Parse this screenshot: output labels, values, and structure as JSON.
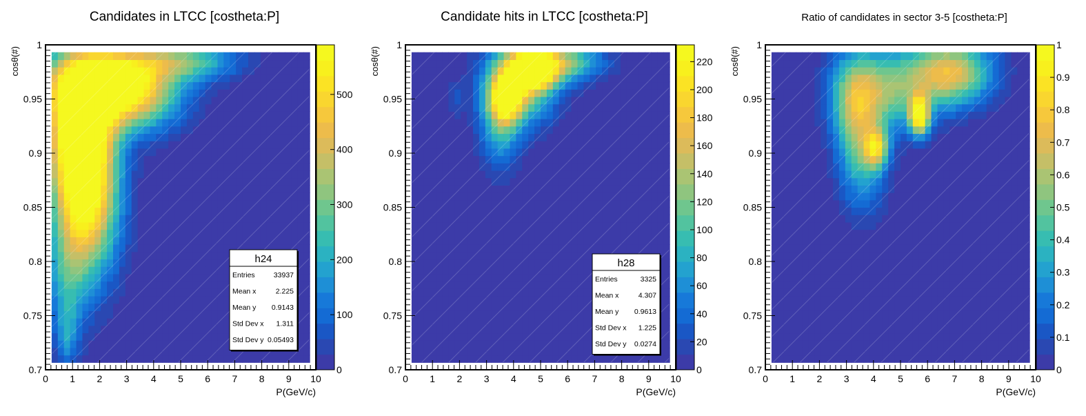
{
  "palette": {
    "colors": [
      "#3c3ba8",
      "#2a48b2",
      "#1a57c5",
      "#146bd4",
      "#1779d9",
      "#1e8fd6",
      "#23a2cf",
      "#2bb2c1",
      "#37bdb1",
      "#52c39f",
      "#6fc68e",
      "#8fc57f",
      "#aac473",
      "#c5bf67",
      "#dcbb5a",
      "#edbc4b",
      "#f6c83c",
      "#f9d62f",
      "#fbe324",
      "#f8f01d",
      "#f5f81f"
    ]
  },
  "chart_data": [
    {
      "type": "heatmap",
      "title": "Candidates in LTCC [costheta:P]",
      "xlabel": "P(GeV/c)",
      "ylabel": "cosθ(#)",
      "xlim": [
        0,
        10
      ],
      "ylim": [
        0.7,
        1.0
      ],
      "x_ticks": [
        "0",
        "1",
        "2",
        "3",
        "4",
        "5",
        "6",
        "7",
        "8",
        "9",
        "10"
      ],
      "y_ticks": [
        "0.7",
        "0.75",
        "0.8",
        "0.85",
        "0.9",
        "0.95",
        "1"
      ],
      "zlim": [
        0,
        590
      ],
      "z_ticks": [
        "0",
        "100",
        "200",
        "300",
        "400",
        "500"
      ],
      "blobs": [
        {
          "x": 1.5,
          "y": 0.86,
          "sx": 0.8,
          "sy": 0.05,
          "amp": 560
        },
        {
          "x": 1.2,
          "y": 0.92,
          "sx": 0.8,
          "sy": 0.04,
          "amp": 520
        },
        {
          "x": 1.8,
          "y": 0.965,
          "sx": 1.3,
          "sy": 0.025,
          "amp": 480
        },
        {
          "x": 3.3,
          "y": 0.96,
          "sx": 1.2,
          "sy": 0.025,
          "amp": 400
        },
        {
          "x": 5.2,
          "y": 0.985,
          "sx": 1.3,
          "sy": 0.012,
          "amp": 260
        },
        {
          "x": 0.8,
          "y": 0.78,
          "sx": 0.5,
          "sy": 0.04,
          "amp": 160
        },
        {
          "x": 0.8,
          "y": 0.73,
          "sx": 0.25,
          "sy": 0.02,
          "amp": 110
        }
      ],
      "stats": {
        "name": "h24",
        "rows": [
          {
            "label": "Entries",
            "value": "33937"
          },
          {
            "label": "Mean x",
            "value": "2.225"
          },
          {
            "label": "Mean y",
            "value": "0.9143"
          },
          {
            "label": "Std Dev x",
            "value": "1.311"
          },
          {
            "label": "Std Dev y",
            "value": "0.05493"
          }
        ]
      }
    },
    {
      "type": "heatmap",
      "title": "Candidate hits in LTCC [costheta:P]",
      "xlabel": "P(GeV/c)",
      "ylabel": "cosθ(#)",
      "xlim": [
        0,
        10
      ],
      "ylim": [
        0.7,
        1.0
      ],
      "x_ticks": [
        "0",
        "1",
        "2",
        "3",
        "4",
        "5",
        "6",
        "7",
        "8",
        "9",
        "10"
      ],
      "y_ticks": [
        "0.7",
        "0.75",
        "0.8",
        "0.85",
        "0.9",
        "0.95",
        "1"
      ],
      "zlim": [
        0,
        232
      ],
      "z_ticks": [
        "0",
        "20",
        "40",
        "60",
        "80",
        "100",
        "120",
        "140",
        "160",
        "180",
        "200",
        "220"
      ],
      "blobs": [
        {
          "x": 4.7,
          "y": 0.977,
          "sx": 0.6,
          "sy": 0.012,
          "amp": 220
        },
        {
          "x": 3.7,
          "y": 0.95,
          "sx": 0.4,
          "sy": 0.015,
          "amp": 180
        },
        {
          "x": 4.2,
          "y": 0.965,
          "sx": 0.9,
          "sy": 0.025,
          "amp": 150
        },
        {
          "x": 5.8,
          "y": 0.985,
          "sx": 1.0,
          "sy": 0.012,
          "amp": 120
        },
        {
          "x": 3.5,
          "y": 0.92,
          "sx": 0.5,
          "sy": 0.025,
          "amp": 70
        },
        {
          "x": 1.85,
          "y": 0.95,
          "sx": 0.2,
          "sy": 0.01,
          "amp": 25
        }
      ],
      "stats": {
        "name": "h28",
        "rows": [
          {
            "label": "Entries",
            "value": "3325"
          },
          {
            "label": "Mean x",
            "value": "4.307"
          },
          {
            "label": "Mean y",
            "value": "0.9613"
          },
          {
            "label": "Std Dev x",
            "value": "1.225"
          },
          {
            "label": "Std Dev y",
            "value": "0.0274"
          }
        ]
      }
    },
    {
      "type": "heatmap",
      "title": "Ratio of candidates in sector 3-5 [costheta:P]",
      "xlabel": "P(GeV/c)",
      "ylabel": "cosθ(#)",
      "xlim": [
        0,
        10
      ],
      "ylim": [
        0.7,
        1.0
      ],
      "x_ticks": [
        "0",
        "1",
        "2",
        "3",
        "4",
        "5",
        "6",
        "7",
        "8",
        "9",
        "10"
      ],
      "y_ticks": [
        "0.7",
        "0.75",
        "0.8",
        "0.85",
        "0.9",
        "0.95",
        "1"
      ],
      "zlim": [
        0,
        1.0
      ],
      "z_ticks": [
        "0",
        "0.1",
        "0.2",
        "0.3",
        "0.4",
        "0.5",
        "0.6",
        "0.7",
        "0.8",
        "0.9",
        "1"
      ],
      "blobs": [
        {
          "x": 5.7,
          "y": 0.935,
          "sx": 0.25,
          "sy": 0.012,
          "amp": 0.95
        },
        {
          "x": 6.9,
          "y": 0.975,
          "sx": 1.0,
          "sy": 0.02,
          "amp": 0.7
        },
        {
          "x": 4.6,
          "y": 0.96,
          "sx": 1.2,
          "sy": 0.025,
          "amp": 0.5
        },
        {
          "x": 4.1,
          "y": 0.905,
          "sx": 0.3,
          "sy": 0.012,
          "amp": 0.6
        },
        {
          "x": 3.6,
          "y": 0.9,
          "sx": 0.6,
          "sy": 0.035,
          "amp": 0.4
        },
        {
          "x": 3.3,
          "y": 0.95,
          "sx": 0.6,
          "sy": 0.03,
          "amp": 0.4
        }
      ]
    }
  ]
}
